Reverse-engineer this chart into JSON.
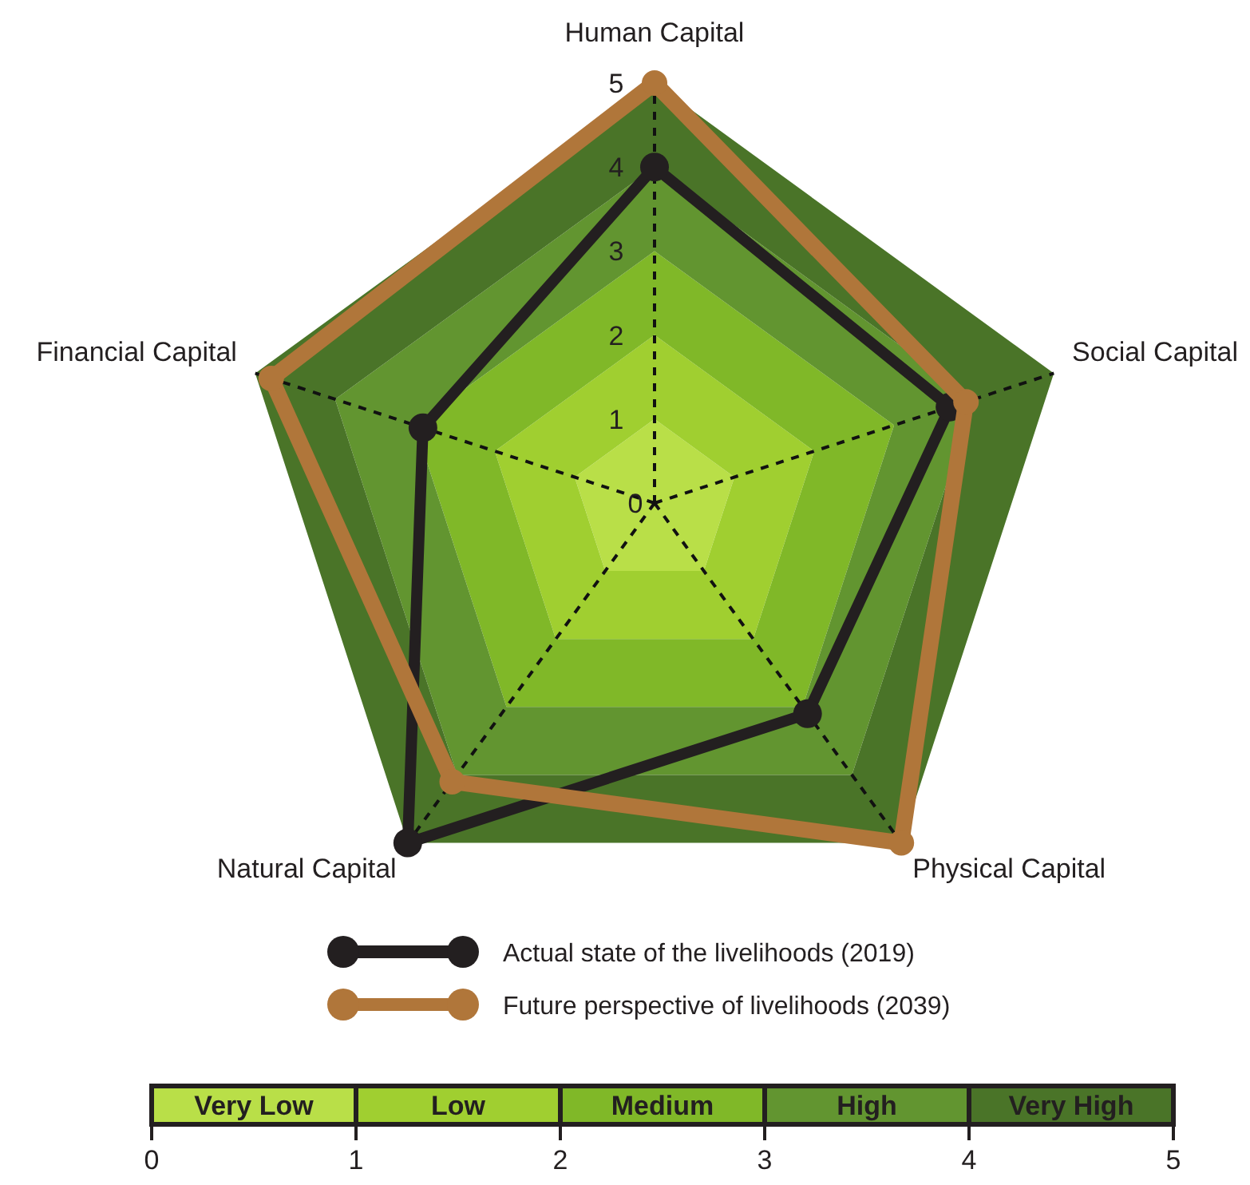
{
  "chart_data": [
    {
      "type": "radar",
      "categories": [
        "Human Capital",
        "Social Capital",
        "Physical Capital",
        "Natural Capital",
        "Financial Capital"
      ],
      "series": [
        {
          "name": "Actual state of the livelihoods (2019)",
          "color": "#231f20",
          "values": [
            4.0,
            3.7,
            3.1,
            5.0,
            2.9
          ]
        },
        {
          "name": "Future perspective of livelihoods (2039)",
          "color": "#b0763a",
          "values": [
            5.0,
            3.9,
            5.0,
            4.1,
            4.8
          ]
        }
      ],
      "ylim": [
        0,
        5
      ],
      "yticks": [
        0,
        1,
        2,
        3,
        4,
        5
      ],
      "marker": "circle",
      "line_style": "solid",
      "grid": true,
      "legend": "bottom"
    },
    {
      "type": "bar",
      "orientation": "horizontal",
      "stacked": true,
      "categories": [
        null
      ],
      "series": [
        {
          "name": "Very Low",
          "color": "#b9df48",
          "values": [
            1
          ]
        },
        {
          "name": "Low",
          "color": "#a0cf30",
          "values": [
            1
          ]
        },
        {
          "name": "Medium",
          "color": "#80b828",
          "values": [
            1
          ]
        },
        {
          "name": "High",
          "color": "#629530",
          "values": [
            1
          ]
        },
        {
          "name": "Very High",
          "color": "#4a7428",
          "values": [
            1
          ]
        }
      ],
      "xlim": [
        0,
        5
      ],
      "xticks": [
        0,
        1,
        2,
        3,
        4,
        5
      ]
    }
  ]
}
